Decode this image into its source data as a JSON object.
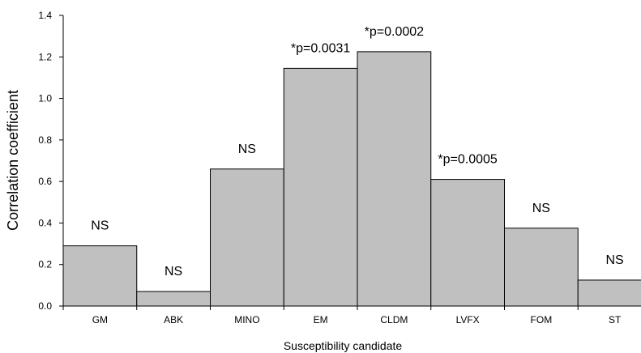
{
  "chart_data": {
    "type": "bar",
    "title": "",
    "xlabel": "Susceptibility candidate",
    "ylabel": "Correlation coefficient",
    "ylim": [
      0,
      1.4
    ],
    "yticks": [
      "0.0",
      "0.2",
      "0.4",
      "0.6",
      "0.8",
      "1.0",
      "1.2",
      "1.4"
    ],
    "categories": [
      "GM",
      "ABK",
      "MINO",
      "EM",
      "CLDM",
      "LVFX",
      "FOM",
      "ST"
    ],
    "values": [
      0.29,
      0.07,
      0.66,
      1.145,
      1.225,
      0.61,
      0.375,
      0.125
    ],
    "annotations": [
      "NS",
      "NS",
      "NS",
      "*p=0.0031",
      "*p=0.0002",
      "*p=0.0005",
      "NS",
      "NS"
    ],
    "bar_color": "#c0c0c0",
    "edge_color": "#000000",
    "grid": false,
    "legend": "none"
  }
}
